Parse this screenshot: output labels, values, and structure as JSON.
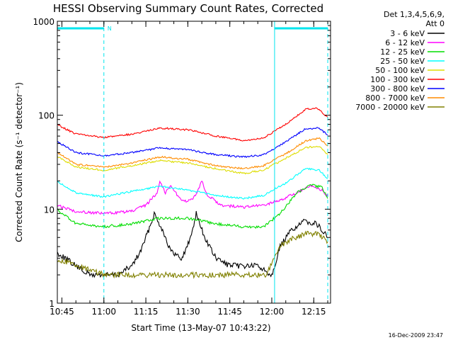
{
  "chart_data": {
    "type": "line",
    "title": "HESSI Observing Summary Count Rates, Corrected",
    "xlabel": "Start Time (13-May-07 10:43:22)",
    "ylabel": "Corrected Count Rate (s⁻¹ detector⁻¹)",
    "yscale": "log",
    "ylim": [
      1,
      1000
    ],
    "xlim": [
      "10:43:22",
      "12:21:00"
    ],
    "x_ticks": [
      "10:45",
      "11:00",
      "11:15",
      "11:30",
      "11:45",
      "12:00",
      "12:15"
    ],
    "y_ticks": [
      "1",
      "10",
      "100",
      "1000"
    ],
    "grid": false,
    "legend_position": "right",
    "legend_header": [
      "Det 1,3,4,5,6,9,",
      "Att 0"
    ],
    "night_marker": "N",
    "marker_color": "#00e5ee",
    "footer_text": "16-Dec-2009 23:47",
    "series": [
      {
        "name": "3 - 6 keV",
        "color": "#000000",
        "points": [
          [
            "10:43",
            3.5
          ],
          [
            "10:50",
            2.5
          ],
          [
            "10:55",
            2.0
          ],
          [
            "11:00",
            2.0
          ],
          [
            "11:05",
            2.0
          ],
          [
            "11:10",
            2.5
          ],
          [
            "11:13",
            3.5
          ],
          [
            "11:16",
            6.0
          ],
          [
            "11:18",
            9.0
          ],
          [
            "11:21",
            6.0
          ],
          [
            "11:24",
            3.5
          ],
          [
            "11:28",
            3.0
          ],
          [
            "11:31",
            5.0
          ],
          [
            "11:33",
            9.0
          ],
          [
            "11:36",
            5.0
          ],
          [
            "11:40",
            3.0
          ],
          [
            "11:45",
            2.5
          ],
          [
            "11:50",
            2.5
          ],
          [
            "11:55",
            2.5
          ],
          [
            "12:00",
            2.0
          ],
          [
            "12:03",
            4.0
          ],
          [
            "12:07",
            6.0
          ],
          [
            "12:12",
            7.5
          ],
          [
            "12:16",
            7.0
          ],
          [
            "12:20",
            5.0
          ]
        ]
      },
      {
        "name": "6 - 12 keV",
        "color": "#ff00ff",
        "points": [
          [
            "10:43",
            11
          ],
          [
            "10:50",
            9.5
          ],
          [
            "11:00",
            9
          ],
          [
            "11:10",
            9.5
          ],
          [
            "11:15",
            11
          ],
          [
            "11:19",
            15
          ],
          [
            "11:20",
            20
          ],
          [
            "11:22",
            15
          ],
          [
            "11:24",
            18
          ],
          [
            "11:27",
            13
          ],
          [
            "11:30",
            12
          ],
          [
            "11:33",
            14
          ],
          [
            "11:35",
            20
          ],
          [
            "11:37",
            14
          ],
          [
            "11:42",
            11
          ],
          [
            "11:50",
            10.5
          ],
          [
            "11:57",
            11
          ],
          [
            "12:03",
            12.5
          ],
          [
            "12:09",
            15
          ],
          [
            "12:14",
            17.5
          ],
          [
            "12:18",
            16
          ],
          [
            "12:20",
            13.5
          ]
        ]
      },
      {
        "name": "12 - 25 keV",
        "color": "#00dd00",
        "points": [
          [
            "10:43",
            10
          ],
          [
            "10:50",
            7
          ],
          [
            "11:00",
            6.5
          ],
          [
            "11:10",
            7
          ],
          [
            "11:20",
            8
          ],
          [
            "11:30",
            8
          ],
          [
            "11:40",
            7
          ],
          [
            "11:50",
            6.5
          ],
          [
            "11:57",
            6.5
          ],
          [
            "12:03",
            9
          ],
          [
            "12:09",
            15
          ],
          [
            "12:14",
            18
          ],
          [
            "12:18",
            17
          ],
          [
            "12:20",
            13
          ]
        ]
      },
      {
        "name": "25 - 50 keV",
        "color": "#00ffff",
        "points": [
          [
            "10:43",
            20
          ],
          [
            "10:50",
            15
          ],
          [
            "11:00",
            13.5
          ],
          [
            "11:10",
            15.5
          ],
          [
            "11:20",
            17.5
          ],
          [
            "11:30",
            16
          ],
          [
            "11:40",
            14
          ],
          [
            "11:50",
            13
          ],
          [
            "11:57",
            14
          ],
          [
            "12:05",
            19
          ],
          [
            "12:12",
            27
          ],
          [
            "12:17",
            26
          ],
          [
            "12:20",
            21
          ]
        ]
      },
      {
        "name": "50 - 100 keV",
        "color": "#dddd00",
        "points": [
          [
            "10:43",
            37
          ],
          [
            "10:50",
            28
          ],
          [
            "11:00",
            26
          ],
          [
            "11:10",
            29
          ],
          [
            "11:20",
            33
          ],
          [
            "11:30",
            31
          ],
          [
            "11:40",
            27
          ],
          [
            "11:50",
            24
          ],
          [
            "11:57",
            26
          ],
          [
            "12:05",
            35
          ],
          [
            "12:12",
            45
          ],
          [
            "12:17",
            47
          ],
          [
            "12:20",
            38
          ]
        ]
      },
      {
        "name": "100 - 300 keV",
        "color": "#ff0000",
        "points": [
          [
            "10:43",
            80
          ],
          [
            "10:50",
            63
          ],
          [
            "11:00",
            58
          ],
          [
            "11:10",
            63
          ],
          [
            "11:20",
            73
          ],
          [
            "11:30",
            70
          ],
          [
            "11:40",
            60
          ],
          [
            "11:50",
            54
          ],
          [
            "11:57",
            57
          ],
          [
            "12:05",
            80
          ],
          [
            "12:12",
            115
          ],
          [
            "12:16",
            120
          ],
          [
            "12:20",
            95
          ]
        ]
      },
      {
        "name": "300 - 800 keV",
        "color": "#0000ff",
        "points": [
          [
            "10:43",
            53
          ],
          [
            "10:50",
            40
          ],
          [
            "11:00",
            37
          ],
          [
            "11:10",
            40
          ],
          [
            "11:20",
            45
          ],
          [
            "11:30",
            43
          ],
          [
            "11:40",
            38
          ],
          [
            "11:50",
            36
          ],
          [
            "11:57",
            38
          ],
          [
            "12:05",
            52
          ],
          [
            "12:12",
            72
          ],
          [
            "12:17",
            73
          ],
          [
            "12:20",
            61
          ]
        ]
      },
      {
        "name": "800 - 7000 keV",
        "color": "#ff8c00",
        "points": [
          [
            "10:43",
            41
          ],
          [
            "10:50",
            30
          ],
          [
            "11:00",
            28
          ],
          [
            "11:10",
            31
          ],
          [
            "11:20",
            36
          ],
          [
            "11:30",
            34
          ],
          [
            "11:40",
            29
          ],
          [
            "11:50",
            27
          ],
          [
            "11:57",
            29
          ],
          [
            "12:05",
            39
          ],
          [
            "12:12",
            53
          ],
          [
            "12:17",
            57
          ],
          [
            "12:20",
            47
          ]
        ]
      },
      {
        "name": "7000 - 20000 keV",
        "color": "#808000",
        "points": [
          [
            "10:43",
            3.0
          ],
          [
            "10:50",
            2.5
          ],
          [
            "11:00",
            2.0
          ],
          [
            "11:10",
            2.0
          ],
          [
            "11:20",
            2.0
          ],
          [
            "11:30",
            2.0
          ],
          [
            "11:40",
            2.0
          ],
          [
            "11:50",
            2.0
          ],
          [
            "11:58",
            2.0
          ],
          [
            "12:03",
            4.0
          ],
          [
            "12:08",
            5.0
          ],
          [
            "12:13",
            5.5
          ],
          [
            "12:17",
            5.5
          ],
          [
            "12:20",
            4.5
          ]
        ]
      }
    ]
  }
}
